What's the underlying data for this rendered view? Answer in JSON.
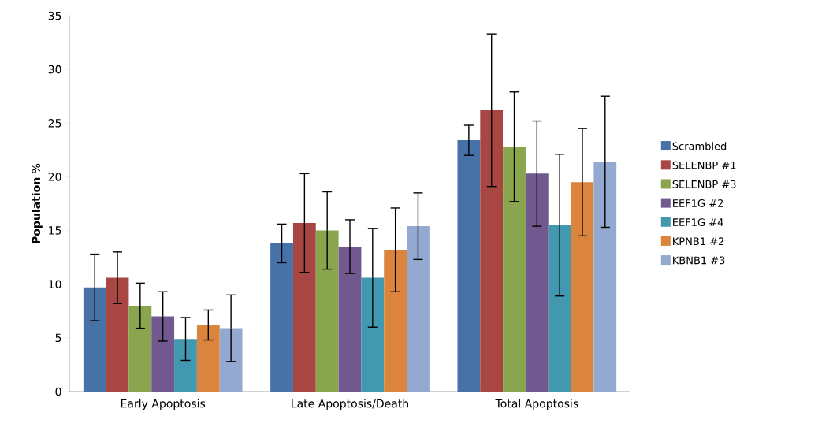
{
  "chart_data": {
    "type": "bar",
    "ylabel": "**Population** %",
    "categories": [
      "Early Apoptosis",
      "Late Apoptosis/Death",
      "Total Apoptosis"
    ],
    "ylim": [
      0,
      35
    ],
    "yticks": [
      0,
      5,
      10,
      15,
      20,
      25,
      30,
      35
    ],
    "grid": false,
    "legend": "right",
    "series": [
      {
        "name": "Scrambled",
        "color": "#4672a8",
        "values": [
          9.7,
          13.8,
          23.4
        ],
        "errors": [
          3.1,
          1.8,
          1.4
        ]
      },
      {
        "name": "SELENBP #1",
        "color": "#a84644",
        "values": [
          10.6,
          15.7,
          26.2
        ],
        "errors": [
          2.4,
          4.6,
          7.1
        ]
      },
      {
        "name": "SELENBP #3",
        "color": "#89a54e",
        "values": [
          8.0,
          15.0,
          22.8
        ],
        "errors": [
          2.1,
          3.6,
          5.1
        ]
      },
      {
        "name": "EEF1G #2",
        "color": "#71588f",
        "values": [
          7.0,
          13.5,
          20.3
        ],
        "errors": [
          2.3,
          2.5,
          4.9
        ]
      },
      {
        "name": "EEF1G #4",
        "color": "#4198af",
        "values": [
          4.9,
          10.6,
          15.5
        ],
        "errors": [
          2.0,
          4.6,
          6.6
        ]
      },
      {
        "name": "KPNB1 #2",
        "color": "#db843d",
        "values": [
          6.2,
          13.2,
          19.5
        ],
        "errors": [
          1.4,
          3.9,
          5.0
        ]
      },
      {
        "name": "KBNB1 #3",
        "color": "#93a9cf",
        "values": [
          5.9,
          15.4,
          21.4
        ],
        "errors": [
          3.1,
          3.1,
          6.1
        ]
      }
    ]
  }
}
